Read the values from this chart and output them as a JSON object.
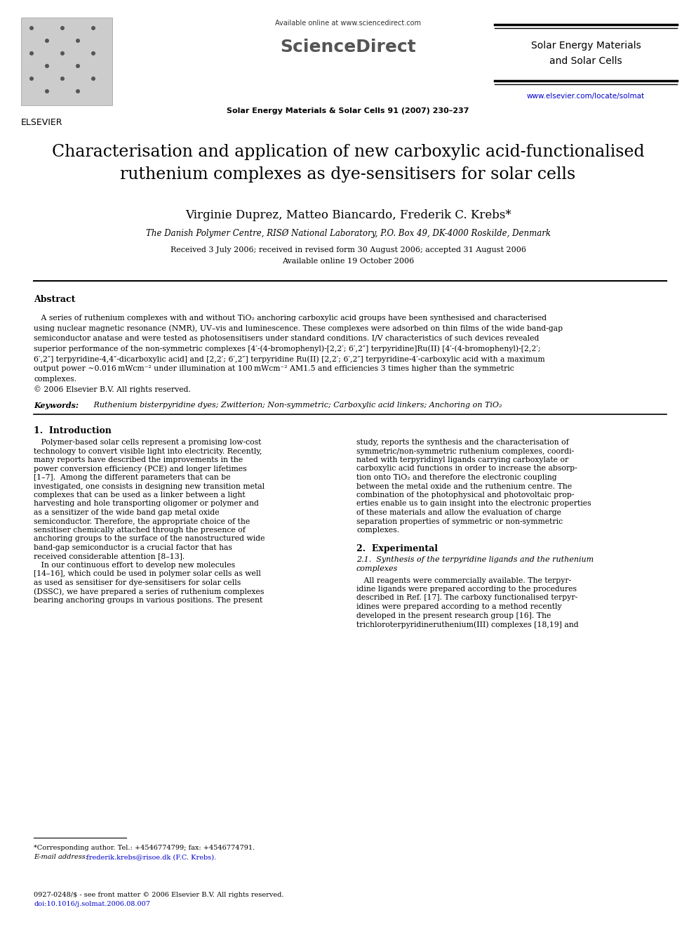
{
  "page_width": 9.92,
  "page_height": 13.23,
  "bg_color": "#ffffff",
  "header_available_online": "Available online at www.sciencedirect.com",
  "header_sciencedirect": "ScienceDirect",
  "header_journal_name_line1": "Solar Energy Materials",
  "header_journal_name_line2": "and Solar Cells",
  "header_journal_ref": "Solar Energy Materials & Solar Cells 91 (2007) 230–237",
  "header_journal_url": "www.elsevier.com/locate/solmat",
  "header_elsevier": "ELSEVIER",
  "title_line1": "Characterisation and application of new carboxylic acid-functionalised",
  "title_line2": "ruthenium complexes as dye-sensitisers for solar cells",
  "authors": "Virginie Duprez, Matteo Biancardo, Frederik C. Krebs*",
  "affiliation": "The Danish Polymer Centre, RISØ National Laboratory, P.O. Box 49, DK-4000 Roskilde, Denmark",
  "received_line1": "Received 3 July 2006; received in revised form 30 August 2006; accepted 31 August 2006",
  "received_line2": "Available online 19 October 2006",
  "abstract_label": "Abstract",
  "abstract_body": "   A series of ruthenium complexes with and without TiO₂ anchoring carboxylic acid groups have been synthesised and characterised\nusing nuclear magnetic resonance (NMR), UV–vis and luminescence. These complexes were adsorbed on thin films of the wide band-gap\nsemiconductor anatase and were tested as photosensitisers under standard conditions. I/V characteristics of such devices revealed\nsuperior performance of the non-symmetric complexes [4′-(4-bromophenyl)-[2,2′; 6′,2″] terpyridine]Ru(II) [4′-(4-bromophenyl)-[2,2′;\n6′,2″] terpyridine-4,4″-dicarboxylic acid] and [2,2′; 6′,2″] terpyridine Ru(II) [2,2′; 6′,2″] terpyridine-4′-carboxylic acid with a maximum\noutput power ∼0.016 mWcm⁻² under illumination at 100 mWcm⁻² AM1.5 and efficiencies 3 times higher than the symmetric\ncomplexes.\n© 2006 Elsevier B.V. All rights reserved.",
  "keywords_label": "Keywords:",
  "keywords_body": " Ruthenium bisterpyridine dyes; Zwitterion; Non-symmetric; Carboxylic acid linkers; Anchoring on TiO₂",
  "sec1_heading": "1.  Introduction",
  "sec1_col1_lines": [
    "   Polymer-based solar cells represent a promising low-cost",
    "technology to convert visible light into electricity. Recently,",
    "many reports have described the improvements in the",
    "power conversion efficiency (PCE) and longer lifetimes",
    "[1–7].  Among the different parameters that can be",
    "investigated, one consists in designing new transition metal",
    "complexes that can be used as a linker between a light",
    "harvesting and hole transporting oligomer or polymer and",
    "as a sensitizer of the wide band gap metal oxide",
    "semiconductor. Therefore, the appropriate choice of the",
    "sensitiser chemically attached through the presence of",
    "anchoring groups to the surface of the nanostructured wide",
    "band-gap semiconductor is a crucial factor that has",
    "received considerable attention [8–13].",
    "   In our continuous effort to develop new molecules",
    "[14–16], which could be used in polymer solar cells as well",
    "as used as sensitiser for dye-sensitisers for solar cells",
    "(DSSC), we have prepared a series of ruthenium complexes",
    "bearing anchoring groups in various positions. The present"
  ],
  "sec1_col2_lines": [
    "study, reports the synthesis and the characterisation of",
    "symmetric/non-symmetric ruthenium complexes, coordi-",
    "nated with terpyridinyl ligands carrying carboxylate or",
    "carboxylic acid functions in order to increase the absorp-",
    "tion onto TiO₂ and therefore the electronic coupling",
    "between the metal oxide and the ruthenium centre. The",
    "combination of the photophysical and photovoltaic prop-",
    "erties enable us to gain insight into the electronic properties",
    "of these materials and allow the evaluation of charge",
    "separation properties of symmetric or non-symmetric",
    "complexes."
  ],
  "sec2_heading": "2.  Experimental",
  "sec2_sub_line1": "2.1.  Synthesis of the terpyridine ligands and the ruthenium",
  "sec2_sub_line2": "complexes",
  "sec2_col2_lines": [
    "   All reagents were commercially available. The terpyr-",
    "idine ligands were prepared according to the procedures",
    "described in Ref. [17]. The carboxy functionalised terpyr-",
    "idines were prepared according to a method recently",
    "developed in the present research group [16]. The",
    "trichloroterpyridineruthenium(III) complexes [18,19] and"
  ],
  "footnote_line1": "*Corresponding author. Tel.: +4546774799; fax: +4546774791.",
  "footnote_line2_label": "E-mail address:",
  "footnote_line2_email": " frederik.krebs@risoe.dk (F.C. Krebs).",
  "footer_line1": "0927-0248/$ - see front matter © 2006 Elsevier B.V. All rights reserved.",
  "footer_line2": "doi:10.1016/j.solmat.2006.08.007"
}
